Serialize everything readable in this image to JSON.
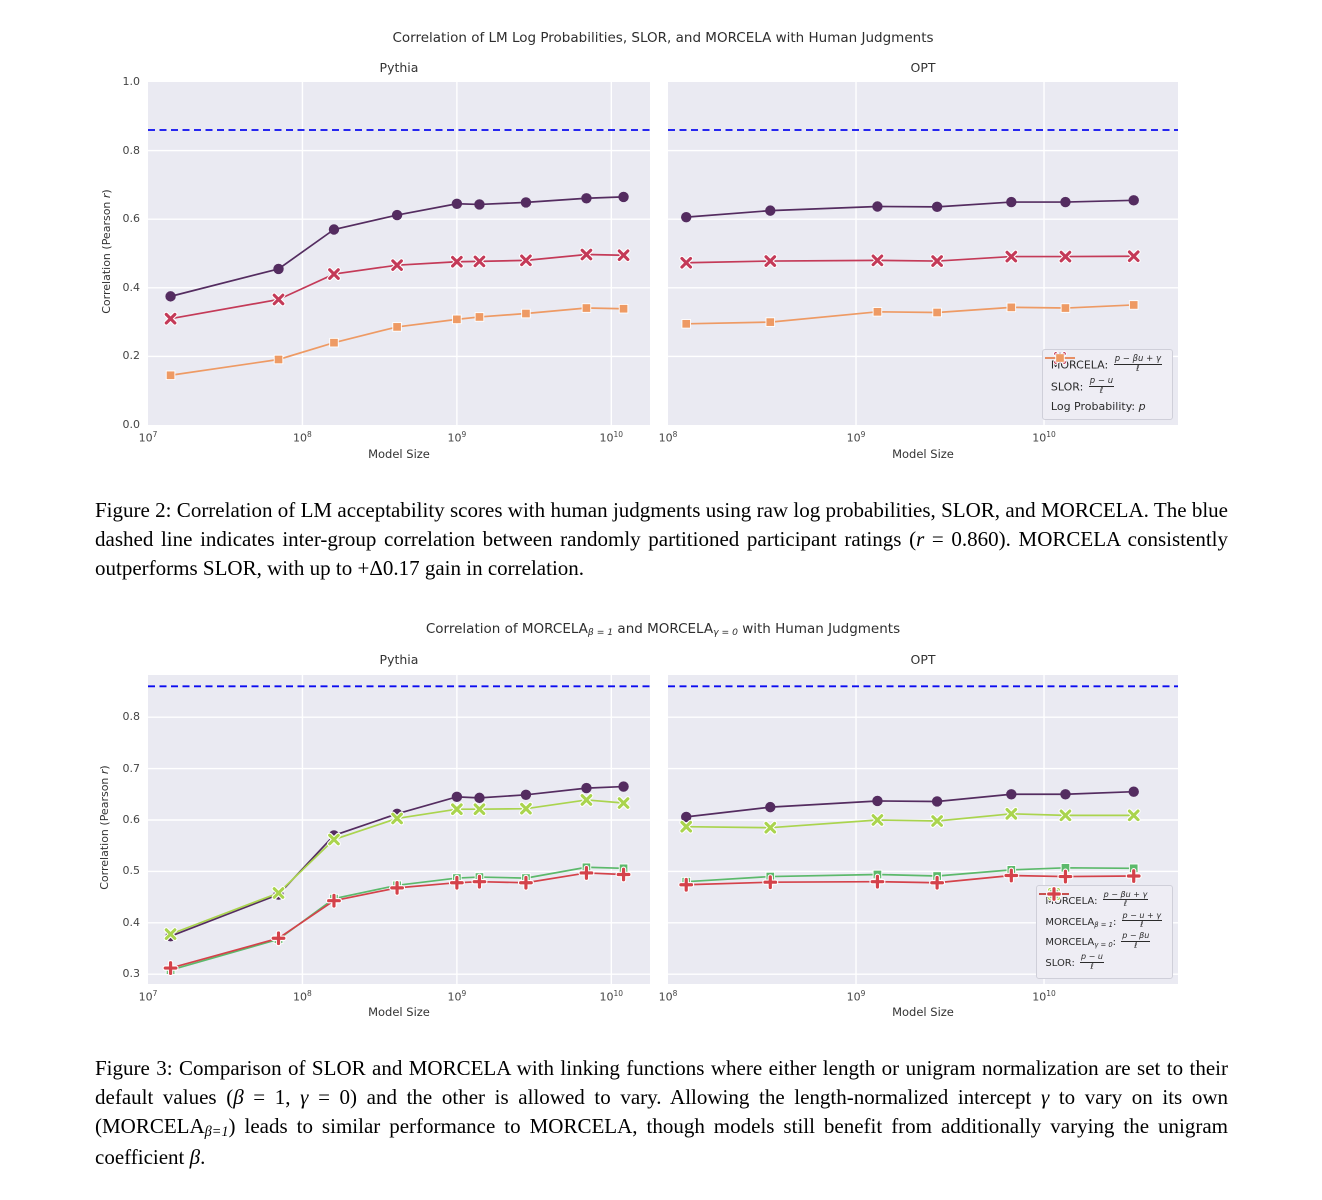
{
  "captions": {
    "fig2_segments": [
      {
        "t": "Figure 2: Correlation of LM acceptability scores with human judgments using raw log probabilities, SLOR, and MORCELA. The blue dashed line indicates inter-group correlation between randomly partitioned participant ratings ("
      },
      {
        "t": "r",
        "i": 1
      },
      {
        "t": " = 0.860). MORCELA consistently outperforms SLOR, with up to +Δ0.17 gain in correlation."
      }
    ],
    "fig3_segments": [
      {
        "t": "Figure 3: Comparison of SLOR and MORCELA with linking functions where either length or unigram normalization are set to their default values ("
      },
      {
        "t": "β",
        "i": 1
      },
      {
        "t": " = 1, "
      },
      {
        "t": "γ",
        "i": 1
      },
      {
        "t": " = 0) and the other is allowed to vary. Allowing the length-normalized intercept "
      },
      {
        "t": "γ",
        "i": 1
      },
      {
        "t": " to vary on its own (MORCELA"
      },
      {
        "t": "β=1",
        "sub": 1
      },
      {
        "t": ") leads to similar performance to MORCELA, though models still benefit from additionally varying the unigram coefficient "
      },
      {
        "t": "β",
        "i": 1
      },
      {
        "t": "."
      }
    ]
  },
  "chart_data": [
    {
      "id": "fig2",
      "type": "line",
      "suptitle_segments": [
        {
          "t": "Correlation of LM Log Probabilities, SLOR, and MORCELA with Human Judgments"
        }
      ],
      "ylabel_segments": [
        {
          "t": "Correlation (Pearson "
        },
        {
          "t": "r",
          "i": 1
        },
        {
          "t": ")"
        }
      ],
      "ref_line": 0.86,
      "ref_color": "#0b0bf0",
      "grid": true,
      "legend_position": "lower right of OPT subplot",
      "series": [
        {
          "name": "MORCELA",
          "marker": "circle",
          "color": "#542c60",
          "label_segments": [
            {
              "t": "MORCELA: "
            },
            {
              "frac": {
                "n": "p − βu + γ",
                "d": "ℓ"
              }
            }
          ],
          "values_by_subplot": [
            [
              0.375,
              0.455,
              0.57,
              0.612,
              0.645,
              0.643,
              0.649,
              0.661,
              0.665
            ],
            [
              0.606,
              0.625,
              0.637,
              0.636,
              0.65,
              0.65,
              0.655
            ]
          ]
        },
        {
          "name": "SLOR",
          "marker": "x",
          "color": "#c43a58",
          "label_segments": [
            {
              "t": "SLOR: "
            },
            {
              "frac": {
                "n": "p − u",
                "d": "ℓ"
              }
            }
          ],
          "values_by_subplot": [
            [
              0.31,
              0.366,
              0.44,
              0.466,
              0.476,
              0.477,
              0.48,
              0.497,
              0.495
            ],
            [
              0.473,
              0.478,
              0.48,
              0.478,
              0.491,
              0.491,
              0.492
            ]
          ]
        },
        {
          "name": "Log Probability",
          "marker": "square",
          "color": "#ee9a64",
          "label_segments": [
            {
              "t": "Log Probability: "
            },
            {
              "t": "p",
              "i": 1
            }
          ],
          "values_by_subplot": [
            [
              0.145,
              0.191,
              0.24,
              0.286,
              0.308,
              0.315,
              0.325,
              0.341,
              0.339
            ],
            [
              0.295,
              0.3,
              0.33,
              0.328,
              0.343,
              0.341,
              0.35
            ]
          ]
        }
      ],
      "subplots": [
        {
          "title": "Pythia",
          "xlabel": "Model Size",
          "show_yticks": true,
          "legend": false,
          "x": [
            14000000,
            70000000,
            160000000,
            410000000,
            1000000000,
            1400000000,
            2800000000,
            6900000000,
            12000000000
          ],
          "xlim": [
            10000000,
            17800000000
          ],
          "xticks_exp": [
            7,
            8,
            9,
            10
          ],
          "ylim": [
            0.0,
            1.0
          ],
          "yticks": [
            0.0,
            0.2,
            0.4,
            0.6,
            0.8,
            1.0
          ]
        },
        {
          "title": "OPT",
          "xlabel": "Model Size",
          "show_yticks": false,
          "legend": true,
          "x": [
            125000000,
            350000000,
            1300000000,
            2700000000,
            6700000000,
            13000000000,
            30000000000
          ],
          "xlim": [
            100000000,
            51600000000
          ],
          "xticks_exp": [
            8,
            9,
            10
          ],
          "ylim": [
            0.0,
            1.0
          ],
          "yticks": [
            0.0,
            0.2,
            0.4,
            0.6,
            0.8,
            1.0
          ]
        }
      ]
    },
    {
      "id": "fig3",
      "type": "line",
      "suptitle_segments": [
        {
          "t": "Correlation of MORCELA"
        },
        {
          "t": "β = 1",
          "sub": 1
        },
        {
          "t": " and MORCELA"
        },
        {
          "t": "γ = 0",
          "sub": 1
        },
        {
          "t": " with Human Judgments"
        }
      ],
      "ylabel_segments": [
        {
          "t": "Correlation (Pearson "
        },
        {
          "t": "r",
          "i": 1
        },
        {
          "t": ")"
        }
      ],
      "ref_line": 0.86,
      "ref_color": "#0b0bf0",
      "grid": true,
      "legend_position": "lower right of OPT subplot",
      "series": [
        {
          "name": "MORCELA",
          "marker": "circle",
          "color": "#542c60",
          "label_segments": [
            {
              "t": "MORCELA: "
            },
            {
              "frac": {
                "n": "p − βu + γ",
                "d": "ℓ"
              }
            }
          ],
          "values_by_subplot": [
            [
              0.374,
              0.455,
              0.57,
              0.612,
              0.645,
              0.643,
              0.649,
              0.662,
              0.665
            ],
            [
              0.606,
              0.625,
              0.637,
              0.636,
              0.65,
              0.65,
              0.655
            ]
          ]
        },
        {
          "name": "MORCELA beta=1",
          "marker": "x",
          "color": "#aad44e",
          "label_segments": [
            {
              "t": "MORCELA"
            },
            {
              "t": "β = 1",
              "sub": 1
            },
            {
              "t": ": "
            },
            {
              "frac": {
                "n": "p − u + γ",
                "d": "ℓ"
              }
            }
          ],
          "values_by_subplot": [
            [
              0.378,
              0.458,
              0.562,
              0.603,
              0.621,
              0.621,
              0.622,
              0.639,
              0.633
            ],
            [
              0.587,
              0.585,
              0.6,
              0.598,
              0.612,
              0.609,
              0.609
            ]
          ]
        },
        {
          "name": "MORCELA gamma=0",
          "marker": "square",
          "color": "#5cb96b",
          "label_segments": [
            {
              "t": "MORCELA"
            },
            {
              "t": "γ = 0",
              "sub": 1
            },
            {
              "t": ": "
            },
            {
              "frac": {
                "n": "p − βu",
                "d": "ℓ"
              }
            }
          ],
          "values_by_subplot": [
            [
              0.308,
              0.368,
              0.447,
              0.473,
              0.487,
              0.489,
              0.487,
              0.508,
              0.506
            ],
            [
              0.48,
              0.49,
              0.494,
              0.491,
              0.503,
              0.507,
              0.506
            ]
          ]
        },
        {
          "name": "SLOR",
          "marker": "plus",
          "color": "#d4424a",
          "label_segments": [
            {
              "t": "SLOR: "
            },
            {
              "frac": {
                "n": "p − u",
                "d": "ℓ"
              }
            }
          ],
          "values_by_subplot": [
            [
              0.312,
              0.37,
              0.443,
              0.468,
              0.478,
              0.48,
              0.478,
              0.497,
              0.494
            ],
            [
              0.474,
              0.479,
              0.48,
              0.478,
              0.492,
              0.49,
              0.491
            ]
          ]
        }
      ],
      "subplots": [
        {
          "title": "Pythia",
          "xlabel": "Model Size",
          "show_yticks": true,
          "legend": false,
          "x": [
            14000000,
            70000000,
            160000000,
            410000000,
            1000000000,
            1400000000,
            2800000000,
            6900000000,
            12000000000
          ],
          "xlim": [
            10000000,
            17800000000
          ],
          "xticks_exp": [
            7,
            8,
            9,
            10
          ],
          "ylim": [
            0.281,
            0.882
          ],
          "yticks": [
            0.3,
            0.4,
            0.5,
            0.6,
            0.7,
            0.8
          ]
        },
        {
          "title": "OPT",
          "xlabel": "Model Size",
          "show_yticks": false,
          "legend": true,
          "x": [
            125000000,
            350000000,
            1300000000,
            2700000000,
            6700000000,
            13000000000,
            30000000000
          ],
          "xlim": [
            100000000,
            51600000000
          ],
          "xticks_exp": [
            8,
            9,
            10
          ],
          "ylim": [
            0.281,
            0.882
          ],
          "yticks": [
            0.3,
            0.4,
            0.5,
            0.6,
            0.7,
            0.8
          ]
        }
      ]
    }
  ]
}
